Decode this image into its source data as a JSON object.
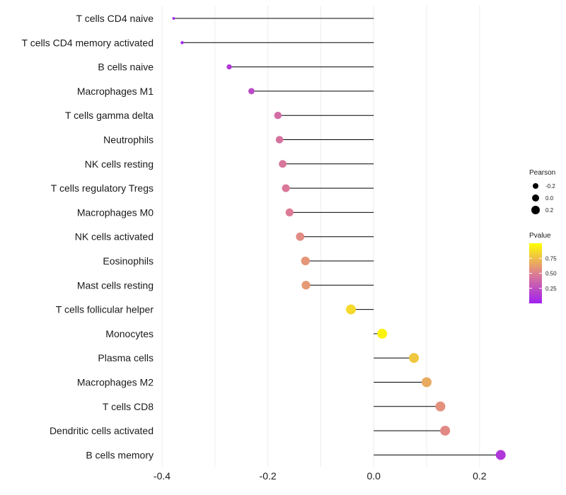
{
  "chart_data": {
    "type": "lollipop",
    "categories": [
      "T cells CD4 naive",
      "T cells CD4 memory activated",
      "B cells naive",
      "Macrophages M1",
      "T cells gamma delta",
      "Neutrophils",
      "NK cells resting",
      "T cells regulatory  Tregs ",
      "Macrophages M0",
      "NK cells activated",
      "Eosinophils",
      "Mast cells resting",
      "T cells follicular helper",
      "Monocytes",
      "Plasma cells",
      "Macrophages M2",
      "T cells CD8",
      "Dendritic cells activated",
      "B cells memory"
    ],
    "values": [
      -0.378,
      -0.362,
      -0.273,
      -0.231,
      -0.181,
      -0.178,
      -0.172,
      -0.166,
      -0.159,
      -0.139,
      -0.129,
      -0.128,
      -0.043,
      0.016,
      0.076,
      0.1,
      0.126,
      0.135,
      0.24
    ],
    "pvalues": [
      0.01,
      0.02,
      0.12,
      0.22,
      0.4,
      0.43,
      0.45,
      0.46,
      0.48,
      0.55,
      0.59,
      0.6,
      0.85,
      0.95,
      0.78,
      0.67,
      0.57,
      0.54,
      0.12
    ],
    "xlim": [
      -0.4,
      0.25
    ],
    "xticks": [
      -0.4,
      -0.2,
      0.0,
      0.2
    ],
    "xtick_labels": [
      "-0.4",
      "-0.2",
      "0.0",
      "0.2"
    ],
    "xlabel": "",
    "ylabel": "",
    "title": "",
    "grid": "vertical",
    "legend": {
      "placement": "right",
      "size": {
        "title": "Pearson",
        "values": [
          -0.2,
          0.0,
          0.2
        ],
        "labels": [
          "-0.2",
          "0.0",
          "0.2"
        ]
      },
      "color": {
        "title": "Pvalue",
        "range": [
          0.0,
          1.0
        ],
        "ticks": [
          0.25,
          0.5,
          0.75
        ],
        "tick_labels": [
          "0.25",
          "0.50",
          "0.75"
        ],
        "low_color": "#a020f0",
        "high_color": "#ffff00"
      }
    }
  }
}
